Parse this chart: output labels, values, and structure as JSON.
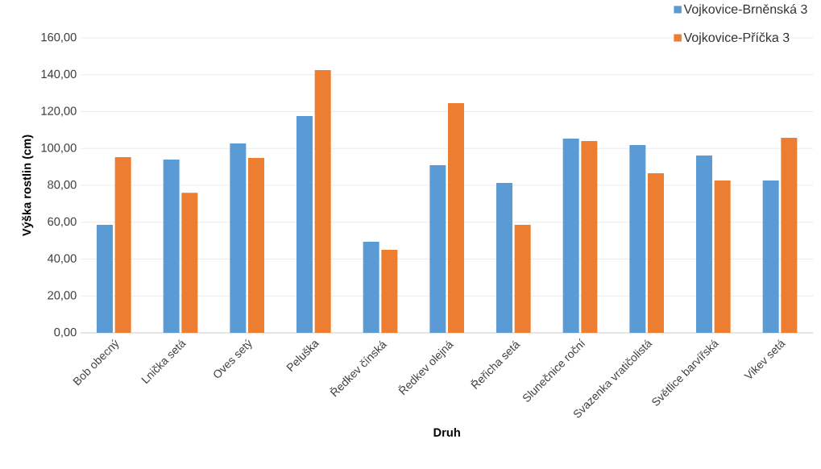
{
  "chart_data": {
    "type": "bar",
    "xlabel": "Druh",
    "ylabel": "Výška rostlin (cm)",
    "categories": [
      "Bob obecný",
      "Lnička setá",
      "Oves setý",
      "Peluška",
      "Ředkev čínská",
      "Ředkev olejná",
      "Řeřicha setá",
      "Slunečnice roční",
      "Svazenka vratičolistá",
      "Světlice barvířská",
      "Vikev setá"
    ],
    "series": [
      {
        "name": "Vojkovice-Brněnská 3",
        "color": "#5b9bd5",
        "values": [
          58.6,
          94.0,
          102.7,
          117.6,
          49.4,
          90.9,
          81.3,
          105.4,
          101.9,
          96.2,
          82.6
        ]
      },
      {
        "name": "Vojkovice-Příčka 3",
        "color": "#ed7d31",
        "values": [
          95.3,
          76.0,
          94.9,
          142.5,
          45.0,
          124.6,
          58.6,
          104.0,
          86.6,
          82.6,
          105.8
        ]
      }
    ],
    "ylim": [
      0,
      160
    ],
    "yticks": [
      {
        "value": 0,
        "label": "0,00"
      },
      {
        "value": 20,
        "label": "20,00"
      },
      {
        "value": 40,
        "label": "40,00"
      },
      {
        "value": 60,
        "label": "60,00"
      },
      {
        "value": 80,
        "label": "80,00"
      },
      {
        "value": 100,
        "label": "100,00"
      },
      {
        "value": 120,
        "label": "120,00"
      },
      {
        "value": 140,
        "label": "140,00"
      },
      {
        "value": 160,
        "label": "160,00"
      }
    ],
    "grid": "y",
    "legend": "top right"
  }
}
